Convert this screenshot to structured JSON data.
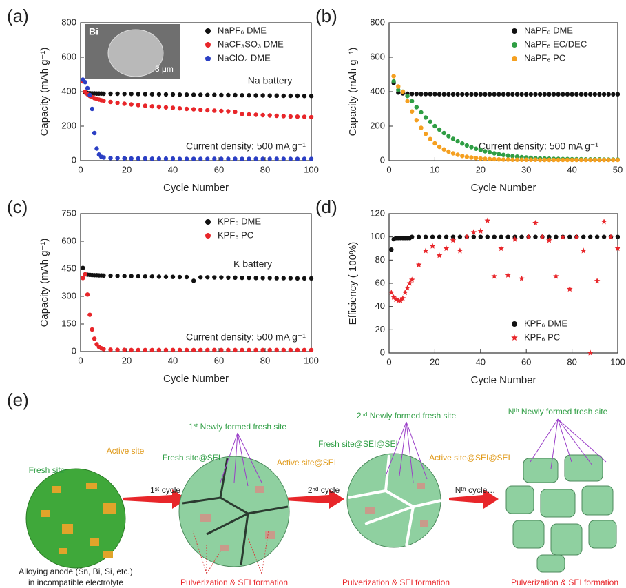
{
  "chart_data": [
    {
      "type": "scatter",
      "panel": "(a)",
      "xlabel": "Cycle Number",
      "ylabel": "Capacity (mAh g⁻¹)",
      "annotations": [
        "Na battery",
        "Current density: 500 mA g⁻¹"
      ],
      "inset_labels": [
        "Bi",
        "3 μm"
      ],
      "xlim": [
        0,
        100
      ],
      "xticks": [
        0,
        20,
        40,
        60,
        80,
        100
      ],
      "ylim": [
        0,
        800
      ],
      "yticks": [
        0,
        200,
        400,
        600,
        800
      ],
      "legend": "upper right",
      "x": [
        1,
        2,
        3,
        4,
        5,
        6,
        7,
        8,
        9,
        10,
        13,
        16,
        19,
        22,
        25,
        28,
        31,
        34,
        37,
        40,
        43,
        46,
        49,
        52,
        55,
        58,
        61,
        64,
        67,
        70,
        73,
        76,
        79,
        82,
        85,
        88,
        91,
        94,
        97,
        100
      ],
      "series": [
        {
          "name": "NaPF₆ DME",
          "color": "#111111",
          "marker": "circle",
          "values": [
            460,
            395,
            392,
            391,
            390,
            390,
            389,
            389,
            389,
            388,
            388,
            388,
            387,
            387,
            386,
            386,
            385,
            385,
            384,
            384,
            383,
            383,
            382,
            382,
            381,
            381,
            380,
            380,
            380,
            379,
            379,
            378,
            378,
            377,
            377,
            376,
            376,
            376,
            375,
            375
          ]
        },
        {
          "name": "NaCF₃SO₃ DME",
          "color": "#e8262a",
          "marker": "circle",
          "values": [
            460,
            400,
            385,
            375,
            368,
            362,
            358,
            354,
            350,
            347,
            340,
            335,
            330,
            326,
            322,
            318,
            315,
            312,
            309,
            306,
            303,
            300,
            298,
            295,
            292,
            290,
            288,
            286,
            283,
            270,
            268,
            266,
            264,
            262,
            260,
            258,
            256,
            255,
            254,
            252
          ]
        },
        {
          "name": "NaClO₄ DME",
          "color": "#2b3fc4",
          "marker": "circle",
          "values": [
            470,
            455,
            420,
            380,
            300,
            160,
            70,
            35,
            22,
            18,
            15,
            14,
            13,
            12,
            12,
            12,
            11,
            11,
            11,
            11,
            10,
            10,
            10,
            10,
            10,
            10,
            10,
            10,
            10,
            10,
            10,
            10,
            10,
            10,
            10,
            10,
            10,
            10,
            10,
            10
          ]
        }
      ]
    },
    {
      "type": "scatter",
      "panel": "(b)",
      "xlabel": "Cycle Number",
      "ylabel": "Capacity (mAh g⁻¹)",
      "annotations": [
        "Current density: 500 mA g⁻¹"
      ],
      "xlim": [
        0,
        50
      ],
      "xticks": [
        0,
        10,
        20,
        30,
        40,
        50
      ],
      "ylim": [
        0,
        800
      ],
      "yticks": [
        0,
        200,
        400,
        600,
        800
      ],
      "legend": "upper right",
      "x": [
        1,
        2,
        3,
        4,
        5,
        6,
        7,
        8,
        9,
        10,
        11,
        12,
        13,
        14,
        15,
        16,
        17,
        18,
        19,
        20,
        21,
        22,
        23,
        24,
        25,
        26,
        27,
        28,
        29,
        30,
        31,
        32,
        33,
        34,
        35,
        36,
        37,
        38,
        39,
        40,
        41,
        42,
        43,
        44,
        45,
        46,
        47,
        48,
        49,
        50
      ],
      "series": [
        {
          "name": "NaPF₆ DME",
          "color": "#111111",
          "marker": "circle",
          "values": [
            450,
            395,
            390,
            388,
            387,
            387,
            386,
            386,
            386,
            386,
            385,
            385,
            385,
            385,
            385,
            385,
            385,
            385,
            385,
            385,
            385,
            385,
            385,
            385,
            385,
            385,
            385,
            385,
            385,
            385,
            385,
            385,
            385,
            385,
            385,
            385,
            385,
            385,
            385,
            385,
            385,
            385,
            385,
            385,
            385,
            385,
            385,
            385,
            385,
            385
          ]
        },
        {
          "name": "NaPF₆ EC/DEC",
          "color": "#2f9e44",
          "marker": "circle",
          "values": [
            460,
            410,
            400,
            375,
            345,
            310,
            280,
            250,
            225,
            200,
            180,
            160,
            142,
            126,
            112,
            99,
            88,
            78,
            69,
            61,
            54,
            48,
            42,
            37,
            33,
            29,
            26,
            23,
            20,
            18,
            16,
            14,
            13,
            12,
            11,
            10,
            10,
            9,
            9,
            8,
            8,
            8,
            7,
            7,
            7,
            7,
            6,
            6,
            6,
            6
          ]
        },
        {
          "name": "NaPF₆ PC",
          "color": "#f5a020",
          "marker": "circle",
          "values": [
            490,
            430,
            400,
            345,
            285,
            235,
            190,
            155,
            125,
            100,
            80,
            65,
            52,
            42,
            34,
            27,
            22,
            18,
            15,
            12,
            10,
            9,
            8,
            7,
            6,
            6,
            5,
            5,
            5,
            5,
            5,
            5,
            4,
            4,
            4,
            4,
            4,
            4,
            4,
            4,
            4,
            4,
            4,
            4,
            4,
            4,
            4,
            4,
            4,
            4
          ]
        }
      ]
    },
    {
      "type": "scatter",
      "panel": "(c)",
      "xlabel": "Cycle Number",
      "ylabel": "Capacity (mAh g⁻¹)",
      "annotations": [
        "K battery",
        "Current density: 500 mA g⁻¹"
      ],
      "xlim": [
        0,
        100
      ],
      "xticks": [
        0,
        20,
        40,
        60,
        80,
        100
      ],
      "ylim": [
        0,
        750
      ],
      "yticks": [
        0,
        150,
        300,
        450,
        600,
        750
      ],
      "legend": "upper right",
      "x": [
        1,
        2,
        3,
        4,
        5,
        6,
        7,
        8,
        9,
        10,
        13,
        16,
        19,
        22,
        25,
        28,
        31,
        34,
        37,
        40,
        43,
        46,
        49,
        52,
        55,
        58,
        61,
        64,
        67,
        70,
        73,
        76,
        79,
        82,
        85,
        88,
        91,
        94,
        97,
        100
      ],
      "series": [
        {
          "name": "KPF₆ DME",
          "color": "#111111",
          "marker": "circle",
          "values": [
            455,
            420,
            418,
            417,
            416,
            415,
            415,
            414,
            414,
            413,
            412,
            411,
            410,
            410,
            409,
            408,
            408,
            407,
            406,
            406,
            405,
            405,
            385,
            404,
            404,
            403,
            403,
            402,
            402,
            401,
            401,
            400,
            400,
            400,
            399,
            399,
            399,
            398,
            398,
            398
          ]
        },
        {
          "name": "KPF₆ PC",
          "color": "#e8262a",
          "marker": "circle",
          "values": [
            400,
            420,
            310,
            200,
            120,
            70,
            40,
            25,
            18,
            13,
            10,
            9,
            9,
            8,
            8,
            8,
            8,
            8,
            8,
            8,
            8,
            8,
            8,
            8,
            8,
            8,
            8,
            8,
            8,
            8,
            8,
            8,
            8,
            8,
            8,
            8,
            8,
            8,
            8,
            8
          ]
        }
      ]
    },
    {
      "type": "scatter",
      "panel": "(d)",
      "xlabel": "Cycle Number",
      "ylabel": "Efficiency ( 100%)",
      "annotations": [],
      "xlim": [
        0,
        100
      ],
      "xticks": [
        0,
        20,
        40,
        60,
        80,
        100
      ],
      "ylim": [
        0,
        120
      ],
      "yticks": [
        0,
        20,
        40,
        60,
        80,
        100,
        120
      ],
      "legend": "lower right",
      "x": [
        1,
        2,
        3,
        4,
        5,
        6,
        7,
        8,
        9,
        10,
        13,
        16,
        19,
        22,
        25,
        28,
        31,
        34,
        37,
        40,
        43,
        46,
        49,
        52,
        55,
        58,
        61,
        64,
        67,
        70,
        73,
        76,
        79,
        82,
        85,
        88,
        91,
        94,
        97,
        100
      ],
      "series": [
        {
          "name": "KPF₆ DME",
          "color": "#111111",
          "marker": "circle",
          "values": [
            89,
            98,
            99,
            99,
            99,
            99,
            99,
            99,
            99,
            100,
            100,
            100,
            100,
            100,
            100,
            100,
            100,
            100,
            100,
            100,
            100,
            100,
            100,
            100,
            100,
            100,
            100,
            100,
            100,
            100,
            100,
            100,
            100,
            100,
            100,
            100,
            100,
            100,
            100,
            100
          ]
        },
        {
          "name": "KPF₆ PC",
          "color": "#e8262a",
          "marker": "star",
          "values": [
            52,
            48,
            46,
            45,
            45,
            47,
            52,
            56,
            60,
            63,
            76,
            88,
            92,
            84,
            90,
            97,
            88,
            100,
            104,
            105,
            114,
            66,
            90,
            67,
            98,
            64,
            100,
            112,
            100,
            97,
            66,
            100,
            55,
            100,
            88,
            0,
            62,
            113,
            100,
            90
          ]
        }
      ]
    }
  ],
  "diagram": {
    "label": "(e)",
    "texts": [
      "Fresh site",
      "Active site",
      "1ˢᵗ cycle",
      "Alloying anode (Sn, Bi, Si, etc.)",
      "in incompatible electrolyte",
      "1ˢᵗ Newly formed fresh site",
      "Fresh site@SEI",
      "Active site@SEI",
      "Pulverization & SEI formation",
      "2ⁿᵈ cycle",
      "2ⁿᵈ Newly formed fresh site",
      "Fresh site@SEI@SEI",
      "Active site@SEI@SEI",
      "Pulverization & SEI formation",
      "Nᵗʰ cycle…",
      "Nᵗʰ Newly formed fresh site",
      "Pulverization & SEI formation"
    ]
  }
}
